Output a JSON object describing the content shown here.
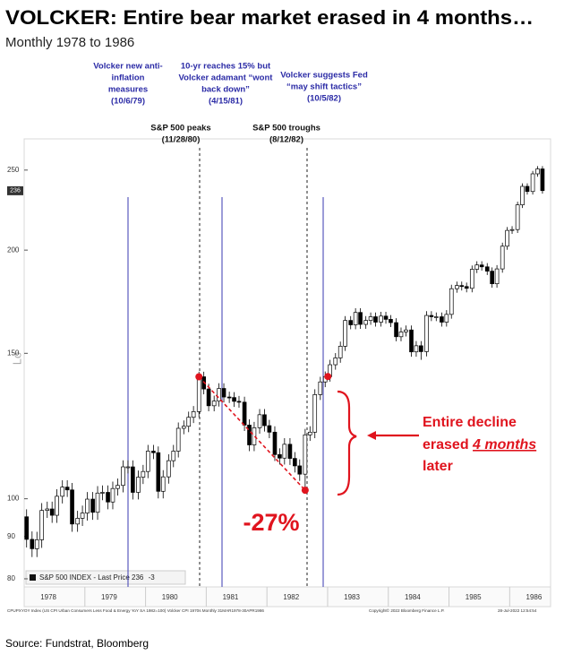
{
  "chart_data": {
    "type": "candlestick",
    "title": "VOLCKER: Entire bear market erased in 4 months…",
    "subtitle": "Monthly 1978 to 1986",
    "source": "Source: Fundstrat, Bloomberg",
    "y_axis_label": "Lo",
    "log_scale": true,
    "ylim": [
      79,
      270
    ],
    "yticks": [
      80,
      90,
      100,
      150,
      200,
      250
    ],
    "xlim": [
      1978,
      1986.6
    ],
    "xticks": [
      1978,
      1979,
      1980,
      1981,
      1982,
      1983,
      1984,
      1985,
      1986
    ],
    "x": [
      1978.04,
      1978.13,
      1978.21,
      1978.29,
      1978.38,
      1978.46,
      1978.54,
      1978.63,
      1978.71,
      1978.79,
      1978.88,
      1978.96,
      1979.04,
      1979.13,
      1979.21,
      1979.29,
      1979.38,
      1979.46,
      1979.54,
      1979.63,
      1979.71,
      1979.79,
      1979.88,
      1979.96,
      1980.04,
      1980.13,
      1980.21,
      1980.29,
      1980.38,
      1980.46,
      1980.54,
      1980.63,
      1980.71,
      1980.79,
      1980.88,
      1980.96,
      1981.04,
      1981.13,
      1981.21,
      1981.29,
      1981.38,
      1981.46,
      1981.54,
      1981.63,
      1981.71,
      1981.79,
      1981.88,
      1981.96,
      1982.04,
      1982.13,
      1982.21,
      1982.29,
      1982.38,
      1982.46,
      1982.54,
      1982.63,
      1982.71,
      1982.79,
      1982.88,
      1982.96,
      1983.04,
      1983.13,
      1983.21,
      1983.29,
      1983.38,
      1983.46,
      1983.54,
      1983.63,
      1983.71,
      1983.79,
      1983.88,
      1983.96,
      1984.04,
      1984.13,
      1984.21,
      1984.29,
      1984.38,
      1984.46,
      1984.54,
      1984.63,
      1984.71,
      1984.79,
      1984.88,
      1984.96,
      1985.04,
      1985.13,
      1985.21,
      1985.29,
      1985.38,
      1985.46,
      1985.54,
      1985.63,
      1985.71,
      1985.79,
      1985.88,
      1985.96,
      1986.04,
      1986.13,
      1986.21,
      1986.29,
      1986.38,
      1986.46,
      1986.54
    ],
    "series": [
      {
        "name": "S&P 500 INDEX - Last Price",
        "last_price": 236,
        "change": -3,
        "color": "#000000",
        "open": [
          95.1,
          89.3,
          87.0,
          89.2,
          96.8,
          97.2,
          95.5,
          100.7,
          103.3,
          102.5,
          93.2,
          94.7,
          96.1,
          99.9,
          96.3,
          101.6,
          101.8,
          99.1,
          102.9,
          103.8,
          109.3,
          109.3,
          101.8,
          106.2,
          107.9,
          114.2,
          113.7,
          102.1,
          106.3,
          111.2,
          114.2,
          121.7,
          122.4,
          125.5,
          127.5,
          140.5,
          135.8,
          129.6,
          131.3,
          136.0,
          132.8,
          132.6,
          131.2,
          130.9,
          122.8,
          116.2,
          121.9,
          126.4,
          122.6,
          120.4,
          113.1,
          112.0,
          116.4,
          111.9,
          109.6,
          107.1,
          119.5,
          120.4,
          133.7,
          138.5,
          140.6,
          145.3,
          148.1,
          153.0,
          164.4,
          162.4,
          168.1,
          162.6,
          164.4,
          166.1,
          163.6,
          166.4,
          164.9,
          163.4,
          157.1,
          159.2,
          160.1,
          150.6,
          153.2,
          150.7,
          166.7,
          166.1,
          166.1,
          163.6,
          167.2,
          179.6,
          181.2,
          180.7,
          179.8,
          189.6,
          191.9,
          190.9,
          188.6,
          182.1,
          189.8,
          202.2,
          211.3,
          211.8,
          226.9,
          238.9,
          235.5,
          247.4,
          250.8
        ],
        "high": [
          97.1,
          91.3,
          91.2,
          98.8,
          99.2,
          99.2,
          102.7,
          105.3,
          105.3,
          104.5,
          96.7,
          98.1,
          101.9,
          101.9,
          103.6,
          103.8,
          103.8,
          104.9,
          105.8,
          111.3,
          111.3,
          111.3,
          108.2,
          109.9,
          116.2,
          116.2,
          115.7,
          108.3,
          113.2,
          116.2,
          123.7,
          124.4,
          127.5,
          129.5,
          142.5,
          142.5,
          137.8,
          133.3,
          138.0,
          138.0,
          134.8,
          134.6,
          133.2,
          132.9,
          124.8,
          123.9,
          128.4,
          128.4,
          124.6,
          122.4,
          115.1,
          118.4,
          118.4,
          113.9,
          111.6,
          121.5,
          122.4,
          135.7,
          140.5,
          142.6,
          147.3,
          150.1,
          155.0,
          166.4,
          166.4,
          170.1,
          170.1,
          166.4,
          168.1,
          168.1,
          168.4,
          168.4,
          166.9,
          165.4,
          161.2,
          162.1,
          162.1,
          155.2,
          155.2,
          168.7,
          168.7,
          168.1,
          168.1,
          169.2,
          181.6,
          183.2,
          183.2,
          182.7,
          191.6,
          193.9,
          193.9,
          192.9,
          190.6,
          191.8,
          204.2,
          213.3,
          213.8,
          228.9,
          240.9,
          240.9,
          249.4,
          252.8,
          252.8
        ],
        "low": [
          87.3,
          85.0,
          85.0,
          87.2,
          94.8,
          93.5,
          93.5,
          98.7,
          100.5,
          91.2,
          91.2,
          92.7,
          94.1,
          94.3,
          94.3,
          99.6,
          97.1,
          97.1,
          100.9,
          101.8,
          107.3,
          99.8,
          99.8,
          104.2,
          105.9,
          111.7,
          100.1,
          100.1,
          104.3,
          109.2,
          112.2,
          119.7,
          120.4,
          123.5,
          125.5,
          133.8,
          127.6,
          127.6,
          129.3,
          130.8,
          130.6,
          129.2,
          128.9,
          120.8,
          114.2,
          114.2,
          119.9,
          120.6,
          118.4,
          111.1,
          110.0,
          110.0,
          109.9,
          107.6,
          105.1,
          102.4,
          117.5,
          118.4,
          131.7,
          136.5,
          138.6,
          143.3,
          146.1,
          151.0,
          160.4,
          160.4,
          160.6,
          160.6,
          162.4,
          161.6,
          161.6,
          162.9,
          161.4,
          155.1,
          155.1,
          157.2,
          148.6,
          148.6,
          147.3,
          148.7,
          164.1,
          164.1,
          161.6,
          161.6,
          165.2,
          177.6,
          178.7,
          177.8,
          177.8,
          187.6,
          188.9,
          186.6,
          180.1,
          180.1,
          187.8,
          200.2,
          209.3,
          209.8,
          224.9,
          233.5,
          233.5,
          245.4,
          234.1
        ],
        "close": [
          89.3,
          87.0,
          89.2,
          96.8,
          97.2,
          95.5,
          100.7,
          103.3,
          102.5,
          93.2,
          94.7,
          96.1,
          99.9,
          96.3,
          101.6,
          101.8,
          99.1,
          102.9,
          103.8,
          109.3,
          109.3,
          101.8,
          106.2,
          107.9,
          114.2,
          113.7,
          102.1,
          106.3,
          111.2,
          114.2,
          121.7,
          122.4,
          125.5,
          127.5,
          140.5,
          135.8,
          129.6,
          131.3,
          136.0,
          132.8,
          132.6,
          131.2,
          130.9,
          122.8,
          116.2,
          121.9,
          126.4,
          122.6,
          120.4,
          113.1,
          112.0,
          116.4,
          111.9,
          109.6,
          107.1,
          119.5,
          120.4,
          133.7,
          138.5,
          140.6,
          145.3,
          148.1,
          153.0,
          164.4,
          162.4,
          168.1,
          162.6,
          164.4,
          166.1,
          163.6,
          166.4,
          164.9,
          163.4,
          157.1,
          159.2,
          160.1,
          150.6,
          153.2,
          150.7,
          166.7,
          166.1,
          166.1,
          163.6,
          167.2,
          179.6,
          181.2,
          180.7,
          179.8,
          189.6,
          191.9,
          190.9,
          188.6,
          182.1,
          189.8,
          202.2,
          211.3,
          211.8,
          226.9,
          238.9,
          235.5,
          247.4,
          250.8,
          236.1
        ]
      }
    ],
    "event_annotations": [
      {
        "lines": [
          "Volcker new anti-",
          "inflation",
          "measures",
          "(10/6/79)"
        ],
        "color": "#2b2ba6"
      },
      {
        "lines": [
          "10-yr reaches 15% but",
          "Volcker adamant “wont",
          "back down”",
          "(4/15/81)"
        ],
        "color": "#2b2ba6"
      },
      {
        "lines": [
          "Volcker suggests Fed",
          "“may shift tactics”",
          "(10/5/82)"
        ],
        "color": "#2b2ba6"
      },
      {
        "lines": [
          "S&P 500 peaks",
          "(11/28/80)"
        ],
        "color": "#111111"
      },
      {
        "lines": [
          "S&P 500 troughs",
          "(8/12/82)"
        ],
        "color": "#111111"
      }
    ],
    "decline_label": "-27%",
    "recovery_note": {
      "line1": "Entire decline",
      "line2a": "erased ",
      "line2b": "4 months",
      "line3": "later",
      "color": "#e0141e"
    },
    "footer": {
      "left": "CPUPXYOY Index (US CPI Urban Consumers Less Food & Energy YoY SA 1982=100) Volcker CPI 1970s  Monthly 31MAR1978-30APR1986",
      "middle": "Copyright© 2022 Bloomberg Finance L.P.",
      "right": "28-Jul-2022 12:54:54"
    }
  }
}
